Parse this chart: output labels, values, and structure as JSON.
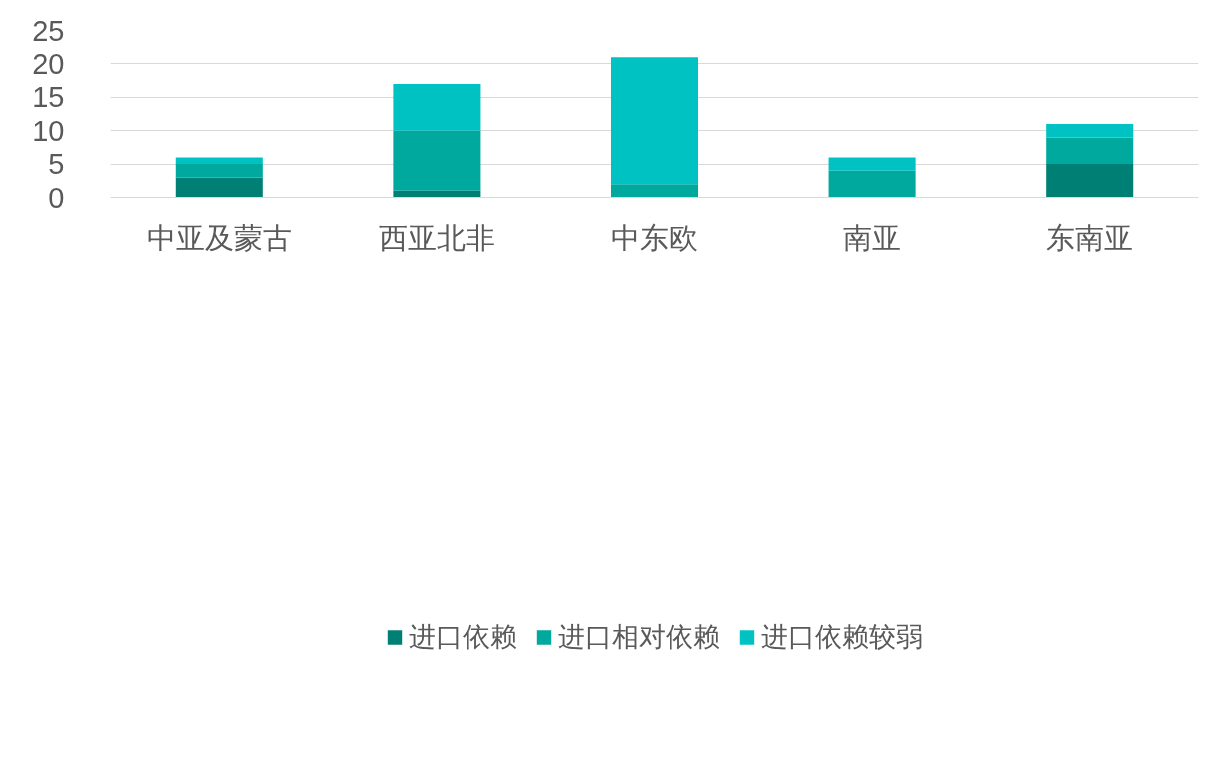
{
  "chart_data": {
    "type": "bar",
    "stacked": true,
    "categories": [
      "中亚及蒙古",
      "西亚北非",
      "中东欧",
      "南亚",
      "东南亚"
    ],
    "series": [
      {
        "name": "进口依赖",
        "color": "#008075",
        "values": [
          3,
          1,
          0,
          0,
          5
        ]
      },
      {
        "name": "进口相对依赖",
        "color": "#00a99d",
        "values": [
          2,
          9,
          2,
          4,
          4
        ]
      },
      {
        "name": "进口依赖较弱",
        "color": "#00c2c2",
        "values": [
          1,
          7,
          19,
          2,
          2
        ]
      }
    ],
    "ylim": [
      0,
      25
    ],
    "yticks": [
      0,
      5,
      10,
      15,
      20,
      25
    ],
    "grid": "y",
    "legend": "bottom"
  }
}
